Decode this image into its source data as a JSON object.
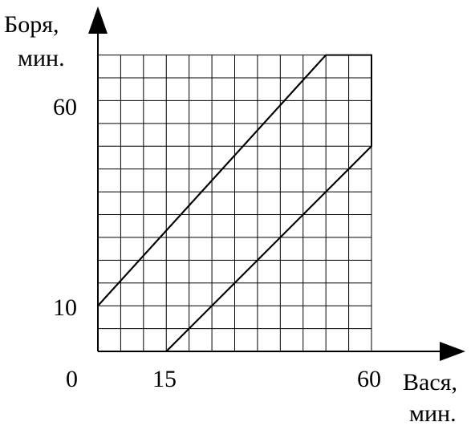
{
  "chart_data": {
    "type": "line",
    "y_axis": {
      "label_line1": "Боря,",
      "label_line2": "мин."
    },
    "x_axis": {
      "label_line1": "Вася,",
      "label_line2": "мин."
    },
    "tick_labels": {
      "origin": "0",
      "x_15": "15",
      "x_60": "60",
      "y_10": "10",
      "y_60": "60"
    },
    "grid": true,
    "xlim": [
      0,
      60
    ],
    "ylim": [
      0,
      60
    ],
    "grid_step_minutes": 5,
    "region_boundary": [
      [
        0,
        0
      ],
      [
        15,
        0
      ],
      [
        60,
        45
      ],
      [
        60,
        60
      ],
      [
        50,
        60
      ],
      [
        0,
        10
      ],
      [
        0,
        0
      ]
    ],
    "lines": [
      {
        "from": [
          0,
          10
        ],
        "to": [
          50,
          60
        ]
      },
      {
        "from": [
          15,
          0
        ],
        "to": [
          60,
          45
        ]
      }
    ]
  }
}
